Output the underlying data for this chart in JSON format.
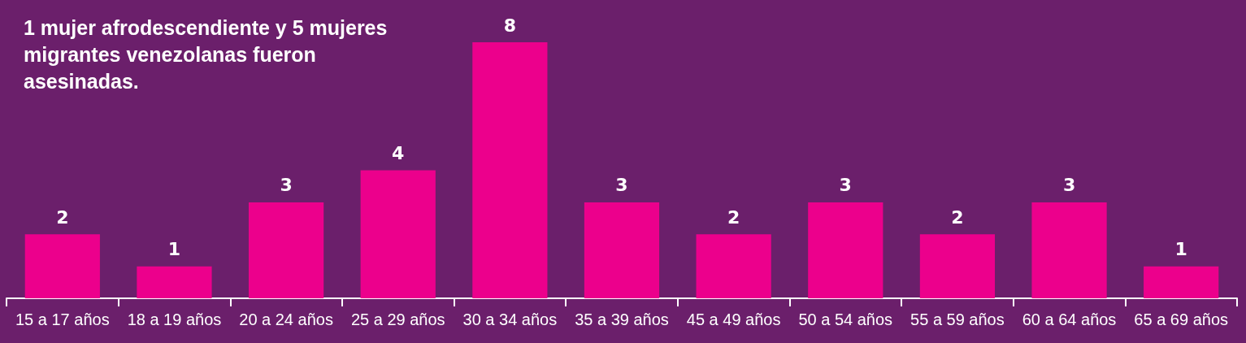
{
  "chart_data": {
    "type": "bar",
    "title": "1 mujer afrodescendiente y 5 mujeres migrantes venezolanas fueron asesinadas.",
    "categories": [
      "15 a 17 años",
      "18 a 19 años",
      "20 a 24 años",
      "25 a 29 años",
      "30 a 34 años",
      "35 a 39 años",
      "45 a 49 años",
      "50 a 54 años",
      "55 a 59 años",
      "60 a 64 años",
      "65 a 69 años"
    ],
    "values": [
      2,
      1,
      3,
      4,
      8,
      3,
      2,
      3,
      2,
      3,
      1
    ],
    "color": "#ec008c",
    "data_labels": true
  }
}
